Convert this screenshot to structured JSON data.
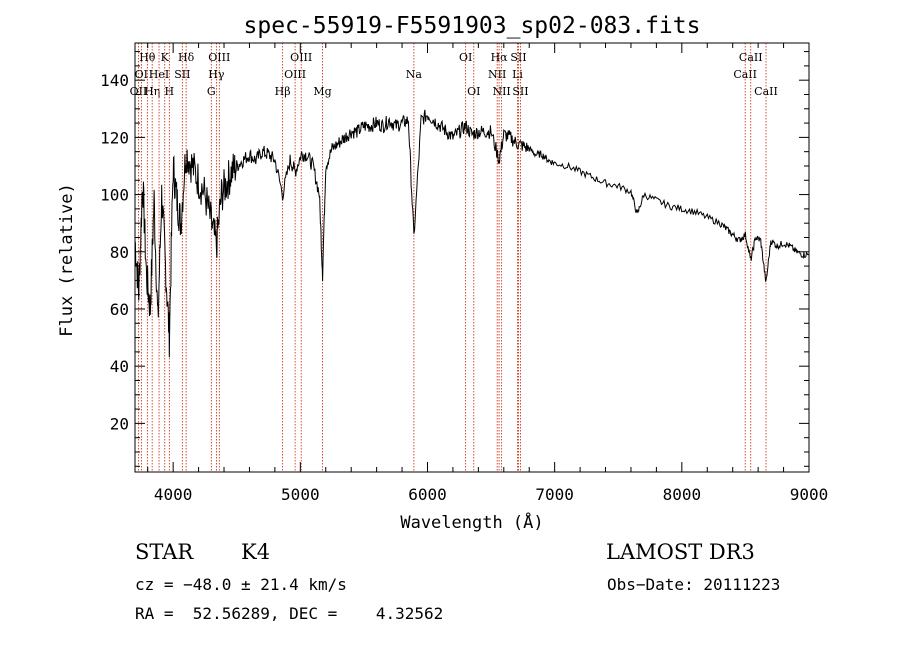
{
  "chart_data": {
    "type": "line",
    "title": "spec-55919-F5591903_sp02-083.fits",
    "xlabel": "Wavelength (Å)",
    "ylabel": "Flux (relative)",
    "xlim": [
      3700,
      9000
    ],
    "ylim": [
      3,
      153
    ],
    "x_ticks": [
      4000,
      5000,
      6000,
      7000,
      8000,
      9000
    ],
    "y_ticks": [
      20,
      40,
      60,
      80,
      100,
      120,
      140
    ],
    "series": [
      {
        "name": "flux",
        "x": [
          3700,
          3730,
          3760,
          3790,
          3820,
          3850,
          3880,
          3910,
          3940,
          3970,
          4000,
          4030,
          4060,
          4100,
          4150,
          4200,
          4250,
          4300,
          4340,
          4380,
          4420,
          4460,
          4500,
          4550,
          4600,
          4650,
          4700,
          4750,
          4800,
          4861,
          4920,
          4960,
          5007,
          5050,
          5100,
          5150,
          5175,
          5200,
          5250,
          5300,
          5350,
          5400,
          5450,
          5500,
          5550,
          5600,
          5650,
          5700,
          5750,
          5800,
          5850,
          5893,
          5950,
          6000,
          6050,
          6100,
          6150,
          6200,
          6250,
          6300,
          6350,
          6400,
          6450,
          6500,
          6563,
          6600,
          6650,
          6700,
          6750,
          6800,
          6850,
          6900,
          6950,
          7000,
          7100,
          7200,
          7300,
          7400,
          7500,
          7600,
          7650,
          7700,
          7800,
          7900,
          8000,
          8100,
          8200,
          8300,
          8350,
          8400,
          8450,
          8500,
          8542,
          8580,
          8620,
          8662,
          8700,
          8750,
          8800,
          8850,
          8900,
          8950,
          9000
        ],
        "y": [
          84,
          66,
          105,
          72,
          60,
          98,
          55,
          100,
          75,
          50,
          110,
          98,
          90,
          115,
          110,
          105,
          100,
          90,
          82,
          100,
          104,
          108,
          110,
          112,
          114,
          112,
          115,
          114,
          112,
          100,
          112,
          108,
          114,
          114,
          110,
          100,
          72,
          110,
          116,
          118,
          120,
          122,
          122,
          124,
          124,
          125,
          124,
          126,
          124,
          125,
          126,
          85,
          126,
          128,
          126,
          124,
          122,
          120,
          122,
          124,
          121,
          122,
          122,
          122,
          112,
          121,
          120,
          118,
          117,
          116,
          114,
          114,
          112,
          111,
          110,
          108,
          106,
          104,
          103,
          101,
          93,
          100,
          98,
          96,
          95,
          94,
          92,
          90,
          88,
          86,
          84,
          86,
          77,
          85,
          84,
          69,
          84,
          82,
          83,
          82,
          80,
          79,
          79
        ]
      }
    ],
    "line_markers": [
      {
        "wavelength": 3727,
        "label": "OII",
        "row": 3
      },
      {
        "wavelength": 3750,
        "label": "OI",
        "row": 2
      },
      {
        "wavelength": 3797,
        "label": "Hθ",
        "row": 1
      },
      {
        "wavelength": 3835,
        "label": "Hη",
        "row": 3
      },
      {
        "wavelength": 3889,
        "label": "HeI",
        "row": 2
      },
      {
        "wavelength": 3934,
        "label": "K",
        "row": 1
      },
      {
        "wavelength": 3970,
        "label": "H",
        "row": 3
      },
      {
        "wavelength": 4072,
        "label": "SII",
        "row": 2
      },
      {
        "wavelength": 4102,
        "label": "Hδ",
        "row": 1
      },
      {
        "wavelength": 4300,
        "label": "G",
        "row": 3
      },
      {
        "wavelength": 4340,
        "label": "Hγ",
        "row": 2
      },
      {
        "wavelength": 4363,
        "label": "OIII",
        "row": 1
      },
      {
        "wavelength": 4861,
        "label": "Hβ",
        "row": 3
      },
      {
        "wavelength": 4959,
        "label": "OIII",
        "row": 2
      },
      {
        "wavelength": 5007,
        "label": "OIII",
        "row": 1
      },
      {
        "wavelength": 5175,
        "label": "Mg",
        "row": 3
      },
      {
        "wavelength": 5893,
        "label": "Na",
        "row": 2
      },
      {
        "wavelength": 6300,
        "label": "OI",
        "row": 1
      },
      {
        "wavelength": 6364,
        "label": "OI",
        "row": 3
      },
      {
        "wavelength": 6548,
        "label": "NII",
        "row": 2
      },
      {
        "wavelength": 6563,
        "label": "Hα",
        "row": 1
      },
      {
        "wavelength": 6583,
        "label": "NII",
        "row": 3
      },
      {
        "wavelength": 6708,
        "label": "Li",
        "row": 2
      },
      {
        "wavelength": 6716,
        "label": "SII",
        "row": 1
      },
      {
        "wavelength": 6731,
        "label": "SII",
        "row": 3
      },
      {
        "wavelength": 8498,
        "label": "CaII",
        "row": 2
      },
      {
        "wavelength": 8542,
        "label": "CaII",
        "row": 1
      },
      {
        "wavelength": 8662,
        "label": "CaII",
        "row": 3
      }
    ],
    "colors": {
      "spectrum": "#000000",
      "lines": "#cc2200",
      "frame": "#000000"
    }
  },
  "info": {
    "object_class": "STAR",
    "subclass": "K4",
    "survey": "LAMOST DR3",
    "redshift": "cz = −48.0 ± 21.4 km/s",
    "obs_date": "Obs−Date: 20111223",
    "coords": "RA =  52.56289, DEC =    4.32562"
  }
}
